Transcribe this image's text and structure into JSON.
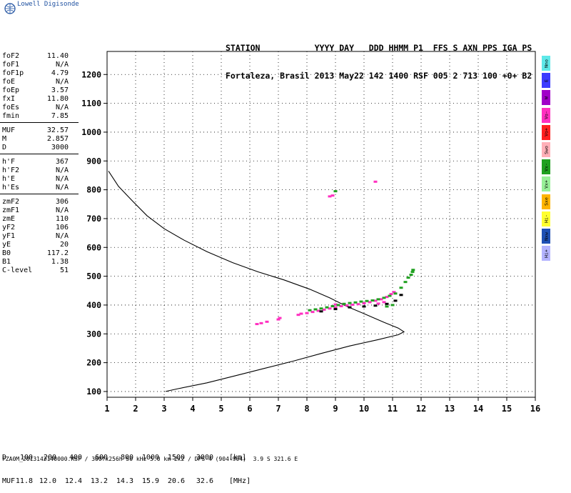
{
  "logo": {
    "text": "Lowell Digisonde"
  },
  "header": {
    "labels": "STATION           YYYY DAY   DDD HHMM P1  FFS S AXN PPS IGA PS",
    "values": "Fortaleza, Brasil 2013 May22 142 1400 RSF 005 2 713 100 +0+ B2"
  },
  "params": {
    "group1": [
      {
        "k": "foF2",
        "v": "11.40"
      },
      {
        "k": "foF1",
        "v": "N/A"
      },
      {
        "k": "foF1p",
        "v": "4.79"
      },
      {
        "k": "foE",
        "v": "N/A"
      },
      {
        "k": "foEp",
        "v": "3.57"
      },
      {
        "k": "fxI",
        "v": "11.80"
      },
      {
        "k": "foEs",
        "v": "N/A"
      },
      {
        "k": "fmin",
        "v": "7.85"
      }
    ],
    "group2": [
      {
        "k": "MUF",
        "v": "32.57"
      },
      {
        "k": "M",
        "v": "2.857"
      },
      {
        "k": "D",
        "v": "3000"
      }
    ],
    "group3": [
      {
        "k": "h'F",
        "v": "367"
      },
      {
        "k": "h'F2",
        "v": "N/A"
      },
      {
        "k": "h'E",
        "v": "N/A"
      },
      {
        "k": "h'Es",
        "v": "N/A"
      }
    ],
    "group4": [
      {
        "k": "zmF2",
        "v": "306"
      },
      {
        "k": "zmF1",
        "v": "N/A"
      },
      {
        "k": "zmE",
        "v": "110"
      },
      {
        "k": "yF2",
        "v": "106"
      },
      {
        "k": "yF1",
        "v": "N/A"
      },
      {
        "k": "yE",
        "v": "20"
      },
      {
        "k": "B0",
        "v": "117.2"
      },
      {
        "k": "B1",
        "v": "1.38"
      },
      {
        "k": "C-level",
        "v": "51"
      }
    ]
  },
  "legend": [
    {
      "label": "Nno",
      "color": "#5ee8e8"
    },
    {
      "label": "E",
      "color": "#3c3cff"
    },
    {
      "label": "W",
      "color": "#a000c8"
    },
    {
      "label": "Vo-",
      "color": "#ff30c0"
    },
    {
      "label": "Vo+",
      "color": "#ff2020"
    },
    {
      "label": "Swo",
      "color": "#ffb0b8"
    },
    {
      "label": "Vx-",
      "color": "#20a020"
    },
    {
      "label": "Vx+",
      "color": "#98f098"
    },
    {
      "label": "Sxe",
      "color": "#ffb400"
    },
    {
      "label": "Hi-",
      "color": "#ffff30"
    },
    {
      "label": "Nxw",
      "color": "#1e50b4"
    },
    {
      "label": "Hi+",
      "color": "#b4b4ff"
    }
  ],
  "footer": {
    "d_label": "D",
    "d_values": [
      "100",
      "200",
      "400",
      "600",
      "800",
      "1000",
      "1500",
      "3000"
    ],
    "d_unit": "[km]",
    "muf_label": "MUF",
    "muf_values": [
      "11.8",
      "12.0",
      "12.4",
      "13.2",
      "14.3",
      "15.9",
      "20.6",
      "32.6"
    ],
    "muf_unit": "[MHz]",
    "file_info": "FZA0M_2013142140000.RSF / 300fx256h 50 kHz 5.0 km 2x2 / DPS-4 (904-904)  3.9 S 321.6 E"
  },
  "chart_data": {
    "type": "scatter",
    "title": "",
    "xlabel": "",
    "ylabel": "",
    "xlim": [
      1,
      16
    ],
    "ylim": [
      80,
      1280
    ],
    "x_ticks": [
      "1",
      "2",
      "3",
      "4",
      "5",
      "6",
      "7",
      "8",
      "9",
      "10",
      "11",
      "12",
      "13",
      "14",
      "15",
      "16"
    ],
    "y_ticks": [
      "100",
      "200",
      "300",
      "400",
      "500",
      "600",
      "700",
      "800",
      "900",
      "1000",
      "1100",
      "1200"
    ],
    "grid": true,
    "profile": {
      "name": "",
      "color": "#000000",
      "points": [
        [
          3.05,
          100
        ],
        [
          3.5,
          110
        ],
        [
          4.5,
          130
        ],
        [
          5.5,
          155
        ],
        [
          6.5,
          180
        ],
        [
          7.5,
          205
        ],
        [
          8.5,
          232
        ],
        [
          9.5,
          258
        ],
        [
          10.5,
          280
        ],
        [
          11.2,
          297
        ],
        [
          11.4,
          307
        ],
        [
          11.2,
          320
        ],
        [
          10.7,
          340
        ],
        [
          10.0,
          370
        ],
        [
          9.4,
          395
        ],
        [
          8.8,
          425
        ],
        [
          8.1,
          455
        ],
        [
          7.2,
          487
        ],
        [
          6.3,
          515
        ],
        [
          5.4,
          547
        ],
        [
          4.5,
          585
        ],
        [
          3.7,
          625
        ],
        [
          3.0,
          665
        ],
        [
          2.4,
          710
        ],
        [
          1.9,
          760
        ],
        [
          1.4,
          812
        ],
        [
          1.05,
          865
        ]
      ]
    },
    "series": [
      {
        "name": "Vo-",
        "color": "#ff30c0",
        "points": [
          [
            6.25,
            334
          ],
          [
            6.4,
            337
          ],
          [
            6.6,
            342
          ],
          [
            7.0,
            350
          ],
          [
            7.05,
            355
          ],
          [
            7.7,
            366
          ],
          [
            7.8,
            370
          ],
          [
            8.0,
            372
          ],
          [
            8.2,
            376
          ],
          [
            8.4,
            380
          ],
          [
            8.6,
            384
          ],
          [
            8.8,
            388
          ],
          [
            9.0,
            392
          ],
          [
            9.2,
            396
          ],
          [
            9.4,
            399
          ],
          [
            9.6,
            401
          ],
          [
            9.8,
            403
          ],
          [
            10.0,
            406
          ],
          [
            10.2,
            410
          ],
          [
            10.4,
            415
          ],
          [
            10.6,
            420
          ],
          [
            10.8,
            428
          ],
          [
            10.95,
            438
          ],
          [
            11.05,
            445
          ],
          [
            10.5,
            405
          ],
          [
            10.7,
            410
          ],
          [
            9.3,
            404
          ],
          [
            9.0,
            402
          ],
          [
            8.9,
            780
          ],
          [
            8.8,
            777
          ],
          [
            10.4,
            828
          ]
        ]
      },
      {
        "name": "Vx-",
        "color": "#20a020",
        "points": [
          [
            8.1,
            382
          ],
          [
            8.3,
            385
          ],
          [
            8.5,
            388
          ],
          [
            8.7,
            392
          ],
          [
            8.9,
            396
          ],
          [
            9.1,
            400
          ],
          [
            9.3,
            404
          ],
          [
            9.5,
            407
          ],
          [
            9.7,
            409
          ],
          [
            9.9,
            412
          ],
          [
            10.1,
            414
          ],
          [
            10.3,
            416
          ],
          [
            10.5,
            420
          ],
          [
            10.7,
            425
          ],
          [
            10.9,
            432
          ],
          [
            11.1,
            440
          ],
          [
            11.3,
            460
          ],
          [
            11.45,
            480
          ],
          [
            11.55,
            495
          ],
          [
            11.65,
            505
          ],
          [
            11.7,
            515
          ],
          [
            11.72,
            522
          ],
          [
            11.0,
            400
          ],
          [
            10.8,
            395
          ],
          [
            9.0,
            795
          ]
        ]
      },
      {
        "name": "",
        "color": "#000000",
        "points": [
          [
            8.5,
            378
          ],
          [
            9.0,
            386
          ],
          [
            9.5,
            392
          ],
          [
            10.0,
            395
          ],
          [
            10.4,
            398
          ],
          [
            10.8,
            404
          ],
          [
            11.1,
            415
          ],
          [
            11.3,
            435
          ]
        ]
      }
    ]
  }
}
